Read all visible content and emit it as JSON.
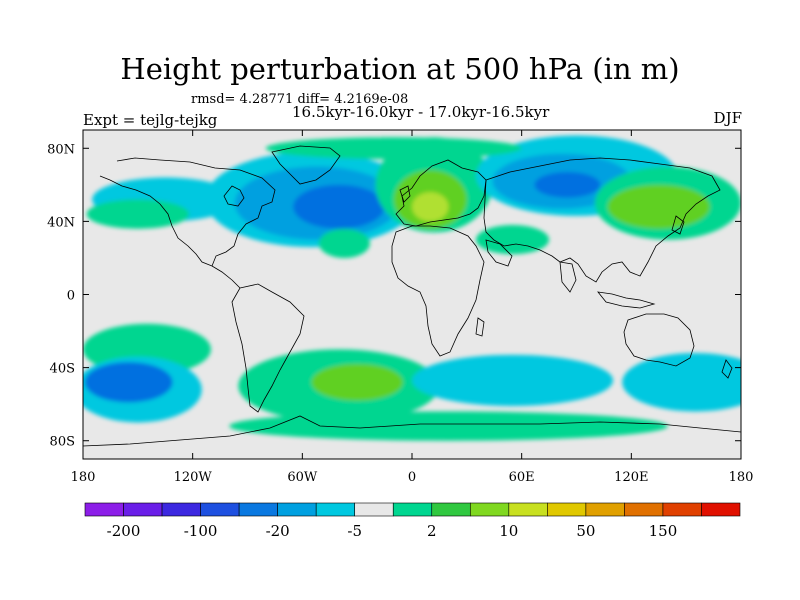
{
  "title": "Height perturbation at 500 hPa (in m)",
  "stats": "rmsd= 4.28771 diff= 4.2169e-08",
  "left_label": "Expt = tejlg-tejkg",
  "center_label": "16.5kyr-16.0kyr - 17.0kyr-16.5kyr",
  "right_label": "DJF",
  "map": {
    "lon_range": [
      -180,
      180
    ],
    "lat_range": [
      -90,
      90
    ],
    "lon_ticks": [
      {
        "value": -180,
        "label": "180"
      },
      {
        "value": -120,
        "label": "120W"
      },
      {
        "value": -60,
        "label": "60W"
      },
      {
        "value": 0,
        "label": "0"
      },
      {
        "value": 60,
        "label": "60E"
      },
      {
        "value": 120,
        "label": "120E"
      },
      {
        "value": 180,
        "label": "180"
      }
    ],
    "lat_ticks": [
      {
        "value": 80,
        "label": "80N"
      },
      {
        "value": 40,
        "label": "40N"
      },
      {
        "value": 0,
        "label": "0"
      },
      {
        "value": -40,
        "label": "40S"
      },
      {
        "value": -80,
        "label": "80S"
      }
    ],
    "background_color": "#e8e8e8",
    "blobs": [
      {
        "lon": -135,
        "lat": 52,
        "rlon": 40,
        "rlat": 12,
        "color": "#00c8e0"
      },
      {
        "lon": -150,
        "lat": 44,
        "rlon": 28,
        "rlat": 8,
        "color": "#00d690"
      },
      {
        "lon": -55,
        "lat": 52,
        "rlon": 58,
        "rlat": 26,
        "color": "#00c8e0"
      },
      {
        "lon": -52,
        "lat": 50,
        "rlon": 45,
        "rlat": 20,
        "color": "#00a0e0"
      },
      {
        "lon": -40,
        "lat": 48,
        "rlon": 25,
        "rlat": 12,
        "color": "#0070e0"
      },
      {
        "lon": -37,
        "lat": 28,
        "rlon": 14,
        "rlat": 8,
        "color": "#00d690"
      },
      {
        "lon": 12,
        "lat": 60,
        "rlon": 32,
        "rlat": 26,
        "color": "#00d690"
      },
      {
        "lon": 10,
        "lat": 52,
        "rlon": 20,
        "rlat": 16,
        "color": "#60d020"
      },
      {
        "lon": 10,
        "lat": 48,
        "rlon": 10,
        "rlat": 8,
        "color": "#b0e030"
      },
      {
        "lon": 90,
        "lat": 65,
        "rlon": 55,
        "rlat": 22,
        "color": "#00c8e0"
      },
      {
        "lon": 82,
        "lat": 62,
        "rlon": 38,
        "rlat": 15,
        "color": "#00a0e0"
      },
      {
        "lon": 85,
        "lat": 60,
        "rlon": 18,
        "rlat": 7,
        "color": "#0070e0"
      },
      {
        "lon": 140,
        "lat": 50,
        "rlon": 40,
        "rlat": 20,
        "color": "#00d690"
      },
      {
        "lon": 135,
        "lat": 48,
        "rlon": 28,
        "rlat": 12,
        "color": "#60d020"
      },
      {
        "lon": 55,
        "lat": 30,
        "rlon": 20,
        "rlat": 8,
        "color": "#00d690"
      },
      {
        "lon": -10,
        "lat": 80,
        "rlon": 70,
        "rlat": 6,
        "color": "#00d690"
      },
      {
        "lon": -145,
        "lat": -30,
        "rlon": 35,
        "rlat": 14,
        "color": "#00d690"
      },
      {
        "lon": -150,
        "lat": -52,
        "rlon": 35,
        "rlat": 18,
        "color": "#00c8e0"
      },
      {
        "lon": -155,
        "lat": -48,
        "rlon": 24,
        "rlat": 11,
        "color": "#0070e0"
      },
      {
        "lon": -40,
        "lat": -50,
        "rlon": 55,
        "rlat": 20,
        "color": "#00d690"
      },
      {
        "lon": -30,
        "lat": -48,
        "rlon": 25,
        "rlat": 10,
        "color": "#60d020"
      },
      {
        "lon": 55,
        "lat": -47,
        "rlon": 55,
        "rlat": 14,
        "color": "#00c8e0"
      },
      {
        "lon": 155,
        "lat": -48,
        "rlon": 40,
        "rlat": 16,
        "color": "#00c8e0"
      },
      {
        "lon": 20,
        "lat": -72,
        "rlon": 120,
        "rlat": 8,
        "color": "#00d690"
      }
    ]
  },
  "colorbar": {
    "colors": [
      "#8c1ee8",
      "#6a1ee8",
      "#3c28e0",
      "#1e50e0",
      "#0a78e0",
      "#00a0e0",
      "#00c8e0",
      "#e8e8e8",
      "#00d690",
      "#30c840",
      "#80d820",
      "#c8e020",
      "#e0c800",
      "#e0a000",
      "#e07000",
      "#e04000",
      "#e01000"
    ],
    "labels": [
      {
        "boundary": 1,
        "label": "-200"
      },
      {
        "boundary": 3,
        "label": "-100"
      },
      {
        "boundary": 5,
        "label": "-20"
      },
      {
        "boundary": 7,
        "label": "-5"
      },
      {
        "boundary": 9,
        "label": "2"
      },
      {
        "boundary": 11,
        "label": "10"
      },
      {
        "boundary": 13,
        "label": "50"
      },
      {
        "boundary": 15,
        "label": "150"
      }
    ]
  }
}
